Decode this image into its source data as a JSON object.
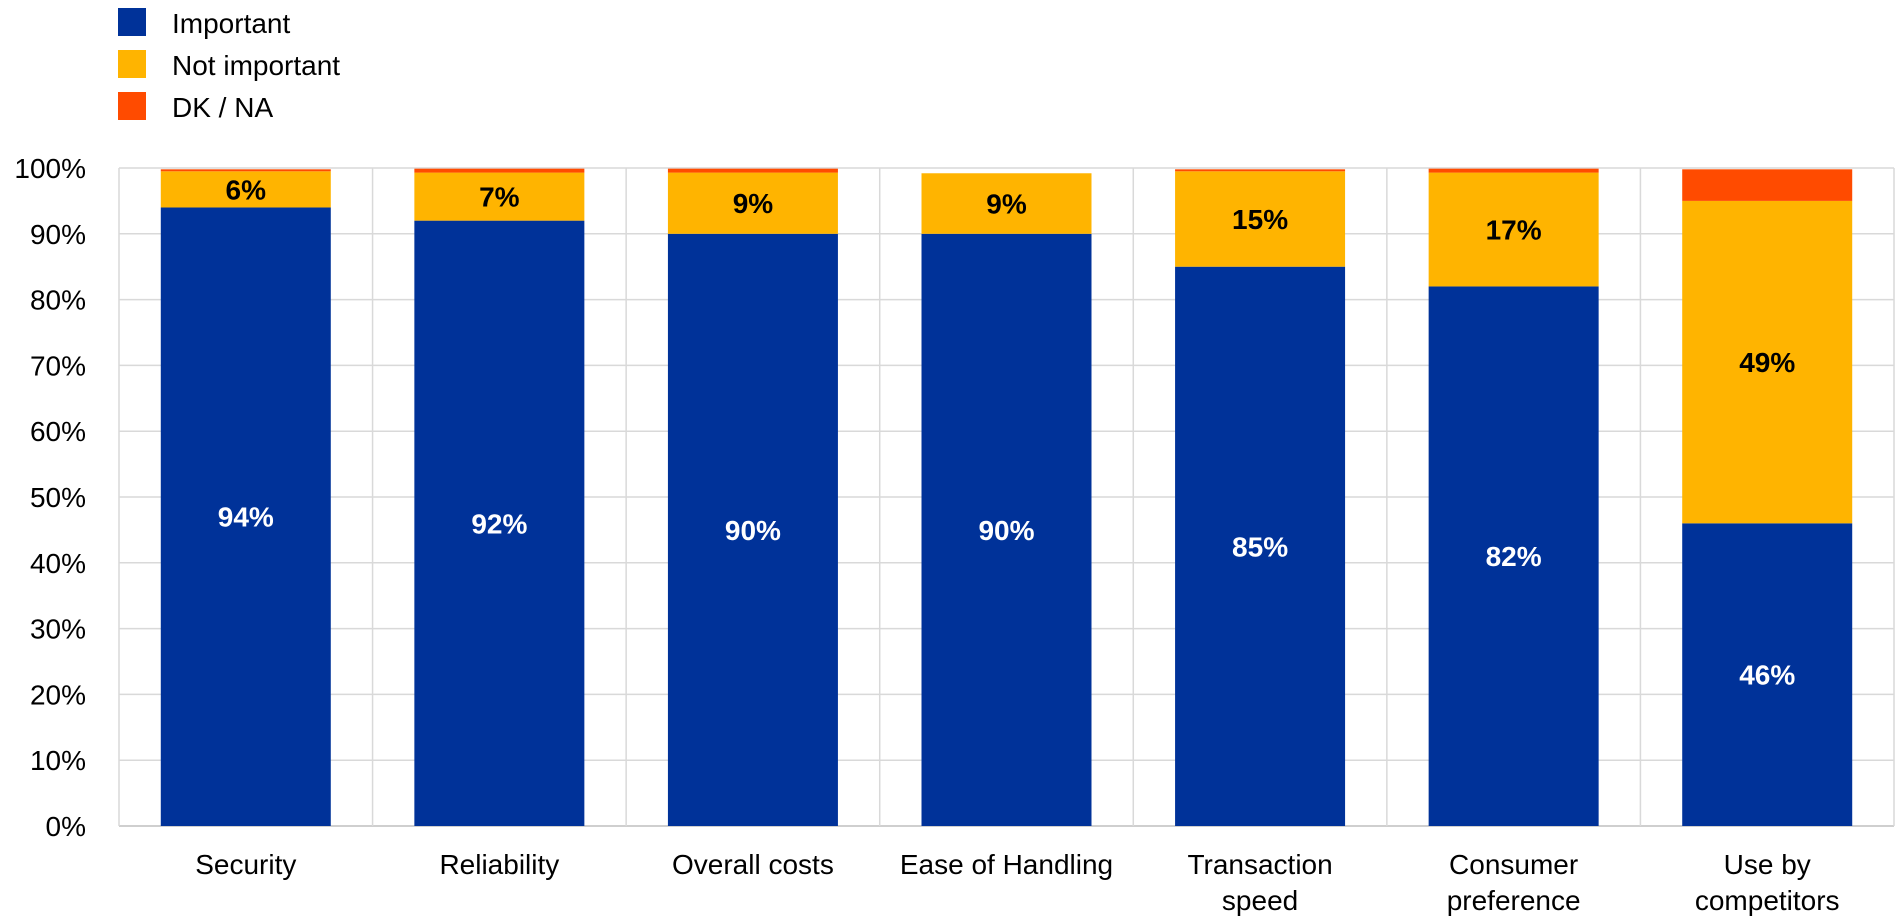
{
  "chart_data": {
    "type": "bar",
    "stacked": true,
    "categories": [
      [
        "Security"
      ],
      [
        "Reliability"
      ],
      [
        "Overall costs"
      ],
      [
        "Ease of Handling"
      ],
      [
        "Transaction",
        "speed"
      ],
      [
        "Consumer",
        "preference"
      ],
      [
        "Use by",
        "competitors"
      ]
    ],
    "series": [
      {
        "name": "Important",
        "color": "#003299",
        "label_color": "#ffffff",
        "values": [
          94,
          92,
          90,
          90,
          85,
          82,
          46
        ],
        "labels": [
          "94%",
          "92%",
          "90%",
          "90%",
          "85%",
          "82%",
          "46%"
        ]
      },
      {
        "name": "Not important",
        "color": "#FFB400",
        "label_color": "#000000",
        "values": [
          5.5,
          7.3,
          9.3,
          9.2,
          14.5,
          17.3,
          49
        ],
        "labels": [
          "6%",
          "7%",
          "9%",
          "9%",
          "15%",
          "17%",
          "49%"
        ]
      },
      {
        "name": "DK / NA",
        "color": "#FF4B00",
        "label_color": "#000000",
        "values": [
          0.3,
          0.6,
          0.6,
          0,
          0.3,
          0.6,
          4.8
        ],
        "labels": [
          "",
          "",
          "",
          "",
          "",
          "",
          ""
        ]
      }
    ],
    "ylim": [
      0,
      100
    ],
    "yticks": [
      0,
      10,
      20,
      30,
      40,
      50,
      60,
      70,
      80,
      90,
      100
    ],
    "ytick_labels": [
      "0%",
      "10%",
      "20%",
      "30%",
      "40%",
      "50%",
      "60%",
      "70%",
      "80%",
      "90%",
      "100%"
    ],
    "grid": true,
    "legend": "top-left",
    "title": "",
    "xlabel": "",
    "ylabel": ""
  }
}
